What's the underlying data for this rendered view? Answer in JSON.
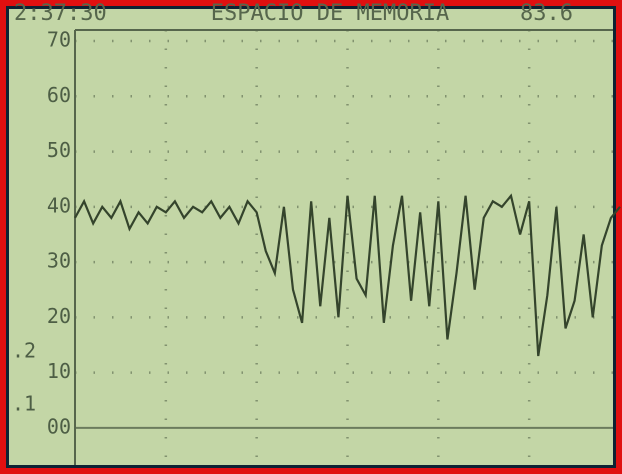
{
  "chart_data": {
    "type": "line",
    "header": [
      "2:37:30",
      "ESPACIO DE MEMORIA",
      "83.6"
    ],
    "side_labels": [
      ".2",
      ".1"
    ],
    "x": [
      0,
      2,
      4,
      6,
      8,
      10,
      12,
      14,
      16,
      18,
      20,
      22,
      24,
      26,
      28,
      30,
      32,
      34,
      36,
      38,
      40,
      42,
      44,
      46,
      48,
      50,
      52,
      54,
      56,
      58,
      60,
      62,
      64,
      66,
      68,
      70,
      72,
      74,
      76,
      78,
      80,
      82,
      84,
      86,
      88,
      90,
      92,
      94,
      96,
      98,
      100,
      102,
      104,
      106,
      108,
      110,
      112,
      114,
      116,
      118,
      120
    ],
    "series": [
      {
        "color": "#34442c",
        "values": [
          38,
          41,
          37,
          40,
          38,
          41,
          36,
          39,
          37,
          40,
          39,
          41,
          38,
          40,
          39,
          41,
          38,
          40,
          37,
          41,
          39,
          32,
          28,
          40,
          25,
          19,
          41,
          22,
          38,
          20,
          42,
          27,
          24,
          42,
          19,
          33,
          42,
          23,
          39,
          22,
          41,
          16,
          28,
          42,
          25,
          38,
          41,
          40,
          42,
          35,
          41,
          13,
          24,
          40,
          18,
          23,
          35,
          20,
          33,
          38,
          40
        ]
      }
    ],
    "xlim": [
      0,
      120
    ],
    "xticks": [
      20,
      40,
      60,
      80,
      100
    ],
    "ylim": [
      -6,
      72
    ],
    "yticks": [
      {
        "value": 0,
        "label": "00"
      },
      10,
      20,
      30,
      40,
      50,
      60,
      70
    ],
    "grid": true
  }
}
